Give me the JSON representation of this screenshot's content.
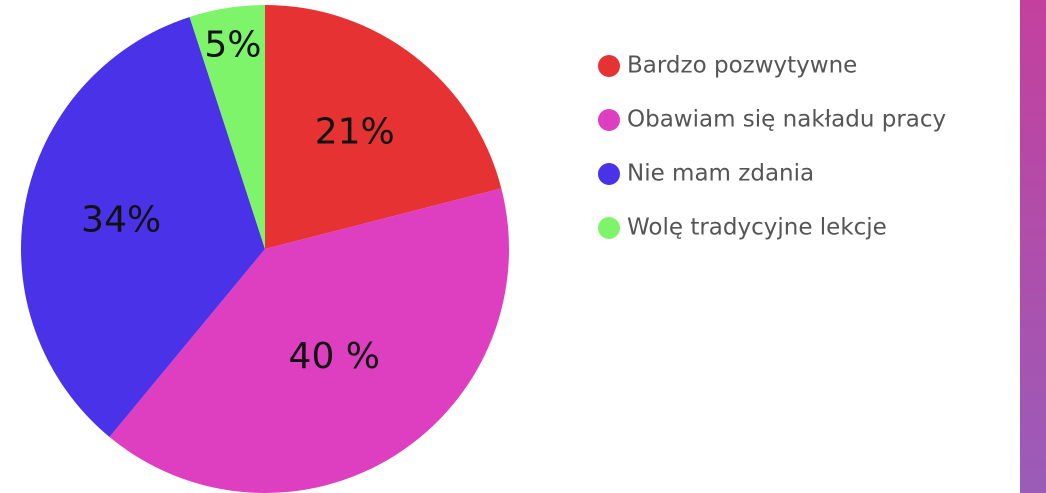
{
  "chart_data": {
    "type": "pie",
    "categories": [
      "Bardzo pozwytywne",
      "Obawiam się nakładu pracy",
      "Nie mam zdania",
      "Wolę tradycyjne lekcje"
    ],
    "values": [
      21,
      40,
      34,
      5
    ],
    "value_labels": [
      "21%",
      "40 %",
      "34%",
      "5%"
    ],
    "colors": [
      "#e63232",
      "#dd3fc0",
      "#4a32e8",
      "#7ef46b"
    ]
  }
}
